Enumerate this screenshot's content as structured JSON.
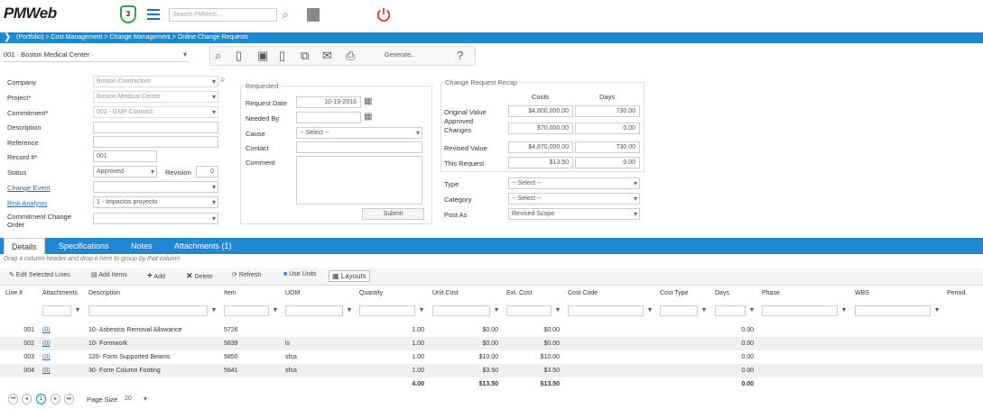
{
  "app": {
    "logo": "PMWeb",
    "badge": "3",
    "search_placeholder": "Search PMWeb..."
  },
  "breadcrumb": "(Portfolio) > Cost Management > Change Management > Online Change Requests",
  "project_selector": "001 · Boston Medical Center ·",
  "toolbar": {
    "generate_label": "Generate..",
    "help": "?"
  },
  "form": {
    "company_label": "Company",
    "company_value": "Boston Contractors",
    "project_label": "Project*",
    "project_value": "Boston Medical Center",
    "commitment_label": "Commitment*",
    "commitment_value": "002 - GMP Contract",
    "description_label": "Description",
    "reference_label": "Reference",
    "record_label": "Record #*",
    "record_value": "001",
    "status_label": "Status",
    "status_value": "Approved",
    "revision_label": "Revision",
    "revision_value": "0",
    "change_event_label": "Change Event",
    "risk_label": "Risk Analysis",
    "risk_value": "1 - Impactos proyecto",
    "cco_label": "Commitment Change Order"
  },
  "requested": {
    "title": "Requested",
    "request_date_label": "Request Date",
    "request_date_value": "10-19-2016",
    "needed_by_label": "Needed By",
    "cause_label": "Cause",
    "cause_value": "-- Select --",
    "contact_label": "Contact",
    "comment_label": "Comment",
    "submit_label": "Submit"
  },
  "recap": {
    "title": "Change Request Recap",
    "costs_header": "Costs",
    "days_header": "Days",
    "rows": [
      {
        "label": "Original Value",
        "cost": "$4,800,000.00",
        "days": "730.00"
      },
      {
        "label": "Approved Changes",
        "cost": "$70,000.00",
        "days": "0.00"
      },
      {
        "label": "Revised Value",
        "cost": "$4,870,000.00",
        "days": "730.00"
      },
      {
        "label": "This Request",
        "cost": "$13.50",
        "days": "0.00"
      }
    ],
    "type_label": "Type",
    "type_value": "-- Select --",
    "category_label": "Category",
    "category_value": "-- Select --",
    "post_as_label": "Post As",
    "post_as_value": "Revised Scope"
  },
  "tabs": [
    "Details",
    "Specifications",
    "Notes",
    "Attachments (1)"
  ],
  "grid_hint": "Drag a column header and drop it here to group by that column",
  "grid_toolbar": {
    "edit": "Edit Selected Lines",
    "add_items": "Add Items",
    "add": "Add",
    "delete": "Delete",
    "refresh": "Refresh",
    "use_units": "Use Units",
    "layouts": "Layouts"
  },
  "columns": [
    "Line #",
    "Attachments",
    "Description",
    "Item",
    "UOM",
    "Quantity",
    "Unit Cost",
    "Ext. Cost",
    "Cost Code",
    "Cost Type",
    "Days",
    "Phase",
    "WBS",
    "Period"
  ],
  "rows": [
    {
      "line": "001",
      "att": "(0)",
      "desc": "10- Asbestos Removal Allowance",
      "item": "5726",
      "uom": "",
      "qty": "1.00",
      "unit": "$0.00",
      "ext": "$0.00",
      "days": "0.00"
    },
    {
      "line": "002",
      "att": "(0)",
      "desc": "10- Formwork",
      "item": "5839",
      "uom": "ls",
      "qty": "1.00",
      "unit": "$0.00",
      "ext": "$0.00",
      "days": "0.00"
    },
    {
      "line": "003",
      "att": "(0)",
      "desc": "120- Form Supported Beams",
      "item": "5850",
      "uom": "sfca",
      "qty": "1.00",
      "unit": "$10.00",
      "ext": "$10.00",
      "days": "0.00"
    },
    {
      "line": "004",
      "att": "(0)",
      "desc": "30- Form Column Footing",
      "item": "5841",
      "uom": "sfca",
      "qty": "1.00",
      "unit": "$3.50",
      "ext": "$3.50",
      "days": "0.00"
    }
  ],
  "totals": {
    "qty": "4.00",
    "unit": "$13.50",
    "ext": "$13.50",
    "days": "0.00"
  },
  "pager": {
    "page": "1",
    "page_size_label": "Page Size",
    "page_size": "20"
  }
}
